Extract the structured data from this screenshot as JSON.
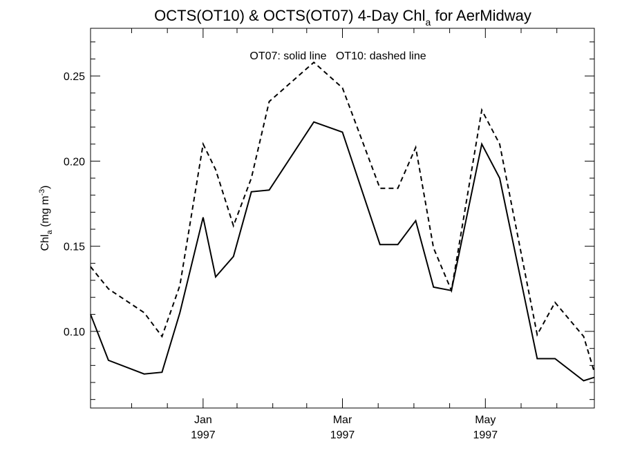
{
  "chart_data": {
    "type": "line",
    "title_main": "OCTS(OT10) & OCTS(OT07) 4-Day Chl",
    "title_sub": "a",
    "title_rest": " for AerMidway",
    "ylabel_main": "Chl",
    "ylabel_sub": "a",
    "ylabel_unit_a": " (mg m",
    "ylabel_sup": "-3",
    "ylabel_unit_b": ")",
    "annotation": "OT07: solid line   OT10: dashed line",
    "xlim": [
      0,
      28.2
    ],
    "ylim": [
      0.055,
      0.278
    ],
    "yticks": [
      0.1,
      0.15,
      0.2,
      0.25
    ],
    "ytick_labels": [
      "0.10",
      "0.15",
      "0.20",
      "0.25"
    ],
    "xticks": [
      6.3,
      14.1,
      22.1
    ],
    "xtick_labels": [
      [
        "Jan",
        "1997"
      ],
      [
        "Mar",
        "1997"
      ],
      [
        "May",
        "1997"
      ]
    ],
    "series": [
      {
        "name": "OT07",
        "style": "solid",
        "x": [
          0,
          1,
          3,
          4,
          5,
          6.3,
          7,
          8,
          9,
          10,
          12.5,
          14.1,
          16.2,
          17.2,
          18.2,
          19.2,
          20.2,
          21.9,
          22.9,
          25,
          26,
          27.6,
          28.2
        ],
        "y": [
          0.11,
          0.083,
          0.075,
          0.076,
          0.111,
          0.167,
          0.132,
          0.144,
          0.182,
          0.183,
          0.223,
          0.217,
          0.151,
          0.151,
          0.165,
          0.126,
          0.124,
          0.21,
          0.19,
          0.084,
          0.084,
          0.071,
          0.073
        ]
      },
      {
        "name": "OT10",
        "style": "dashed",
        "x": [
          0,
          1,
          3,
          4,
          5,
          6.3,
          7,
          8,
          9,
          10,
          12.5,
          14.1,
          16.2,
          17.2,
          18.2,
          19.2,
          20.2,
          21.9,
          22.9,
          25,
          26,
          27.6,
          28.2
        ],
        "y": [
          0.138,
          0.125,
          0.111,
          0.097,
          0.127,
          0.21,
          0.195,
          0.162,
          0.19,
          0.235,
          0.258,
          0.243,
          0.184,
          0.184,
          0.208,
          0.149,
          0.124,
          0.23,
          0.21,
          0.098,
          0.117,
          0.097,
          0.076
        ]
      }
    ]
  }
}
